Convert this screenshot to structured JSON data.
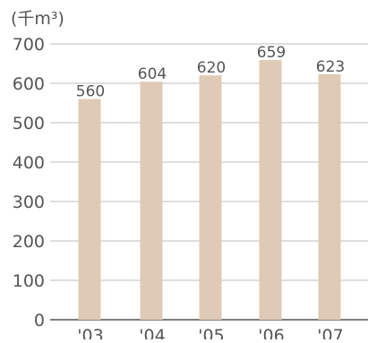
{
  "chart_data": {
    "type": "bar",
    "unit_label": "(千m³)",
    "categories": [
      "'03",
      "'04",
      "'05",
      "'06",
      "'07"
    ],
    "values": [
      560,
      604,
      620,
      659,
      623
    ],
    "data_labels": [
      "560",
      "604",
      "620",
      "659",
      "623"
    ],
    "y_ticks": [
      "700",
      "600",
      "500",
      "400",
      "300",
      "200",
      "100",
      "0"
    ],
    "ylim": [
      0,
      700
    ],
    "grid": true,
    "legend": "none",
    "colors": {
      "bar": "#dfcab5",
      "grid": "#a9a9a9",
      "axis": "#333333",
      "text": "#555555"
    }
  }
}
